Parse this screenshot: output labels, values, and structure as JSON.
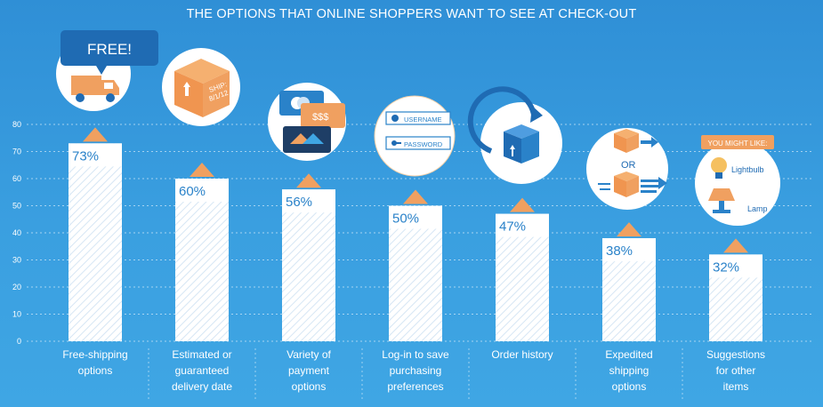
{
  "chart_data": {
    "type": "bar",
    "title": "THE OPTIONS THAT ONLINE SHOPPERS WANT TO SEE AT CHECK-OUT",
    "categories": [
      [
        "Free-shipping",
        "options"
      ],
      [
        "Estimated or",
        "guaranteed",
        "delivery date"
      ],
      [
        "Variety of",
        "payment",
        "options"
      ],
      [
        "Log-in to save",
        "purchasing",
        "preferences"
      ],
      [
        "Order history"
      ],
      [
        "Expedited",
        "shipping",
        "options"
      ],
      [
        "Suggestions",
        "for other",
        "items"
      ]
    ],
    "values": [
      73,
      60,
      56,
      50,
      47,
      38,
      32
    ],
    "value_labels": [
      "73%",
      "60%",
      "56%",
      "50%",
      "47%",
      "38%",
      "32%"
    ],
    "ylim": [
      0,
      80
    ],
    "yticks": [
      "0",
      "10",
      "20",
      "30",
      "40",
      "50",
      "60",
      "70",
      "80"
    ],
    "grid": true,
    "colors": {
      "bar": "#ffffff",
      "arrow": "#f0a060",
      "label": "#2a82c9"
    }
  },
  "icons": [
    {
      "name": "truck-icon",
      "badge": "FREE!"
    },
    {
      "name": "package-icon",
      "text": [
        "SHIP:",
        "8/1/12"
      ]
    },
    {
      "name": "credit-cards-icon",
      "text": "$$$"
    },
    {
      "name": "login-form-icon",
      "fields": [
        "USERNAME",
        "PASSWORD"
      ]
    },
    {
      "name": "history-box-icon"
    },
    {
      "name": "expedited-boxes-icon",
      "text": "OR"
    },
    {
      "name": "suggestions-icon",
      "badge": "YOU MIGHT LIKE:",
      "items": [
        "Lightbulb",
        "Lamp"
      ]
    }
  ]
}
